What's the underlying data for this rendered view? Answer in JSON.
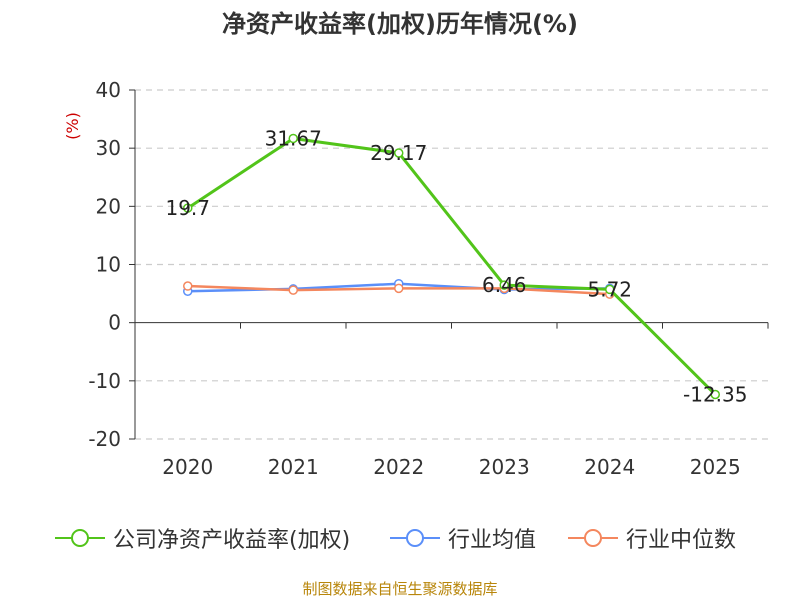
{
  "title": "净资产收益率(加权)历年情况(%)",
  "source": "制图数据来自恒生聚源数据库",
  "chart_data": {
    "type": "line",
    "ylabel": "(%)",
    "categories": [
      "2020",
      "2021",
      "2022",
      "2023",
      "2024",
      "2025"
    ],
    "ylim": [
      -20,
      40
    ],
    "yticks": [
      40,
      30,
      20,
      10,
      0,
      -10,
      -20
    ],
    "grid": true,
    "legend_position": "bottom",
    "series": [
      {
        "name": "公司净资产收益率(加权)",
        "color": "#52c41a",
        "values": [
          19.7,
          31.67,
          29.17,
          6.46,
          5.72,
          -12.35
        ],
        "labels": [
          "19.7",
          "31.67",
          "29.17",
          "6.46",
          "5.72",
          "-12.35"
        ]
      },
      {
        "name": "行业均值",
        "color": "#5b8ff9",
        "values": [
          5.4,
          5.8,
          6.7,
          5.7,
          5.9,
          null
        ]
      },
      {
        "name": "行业中位数",
        "color": "#f4875e",
        "values": [
          6.3,
          5.6,
          5.9,
          5.9,
          4.9,
          null
        ]
      }
    ]
  }
}
